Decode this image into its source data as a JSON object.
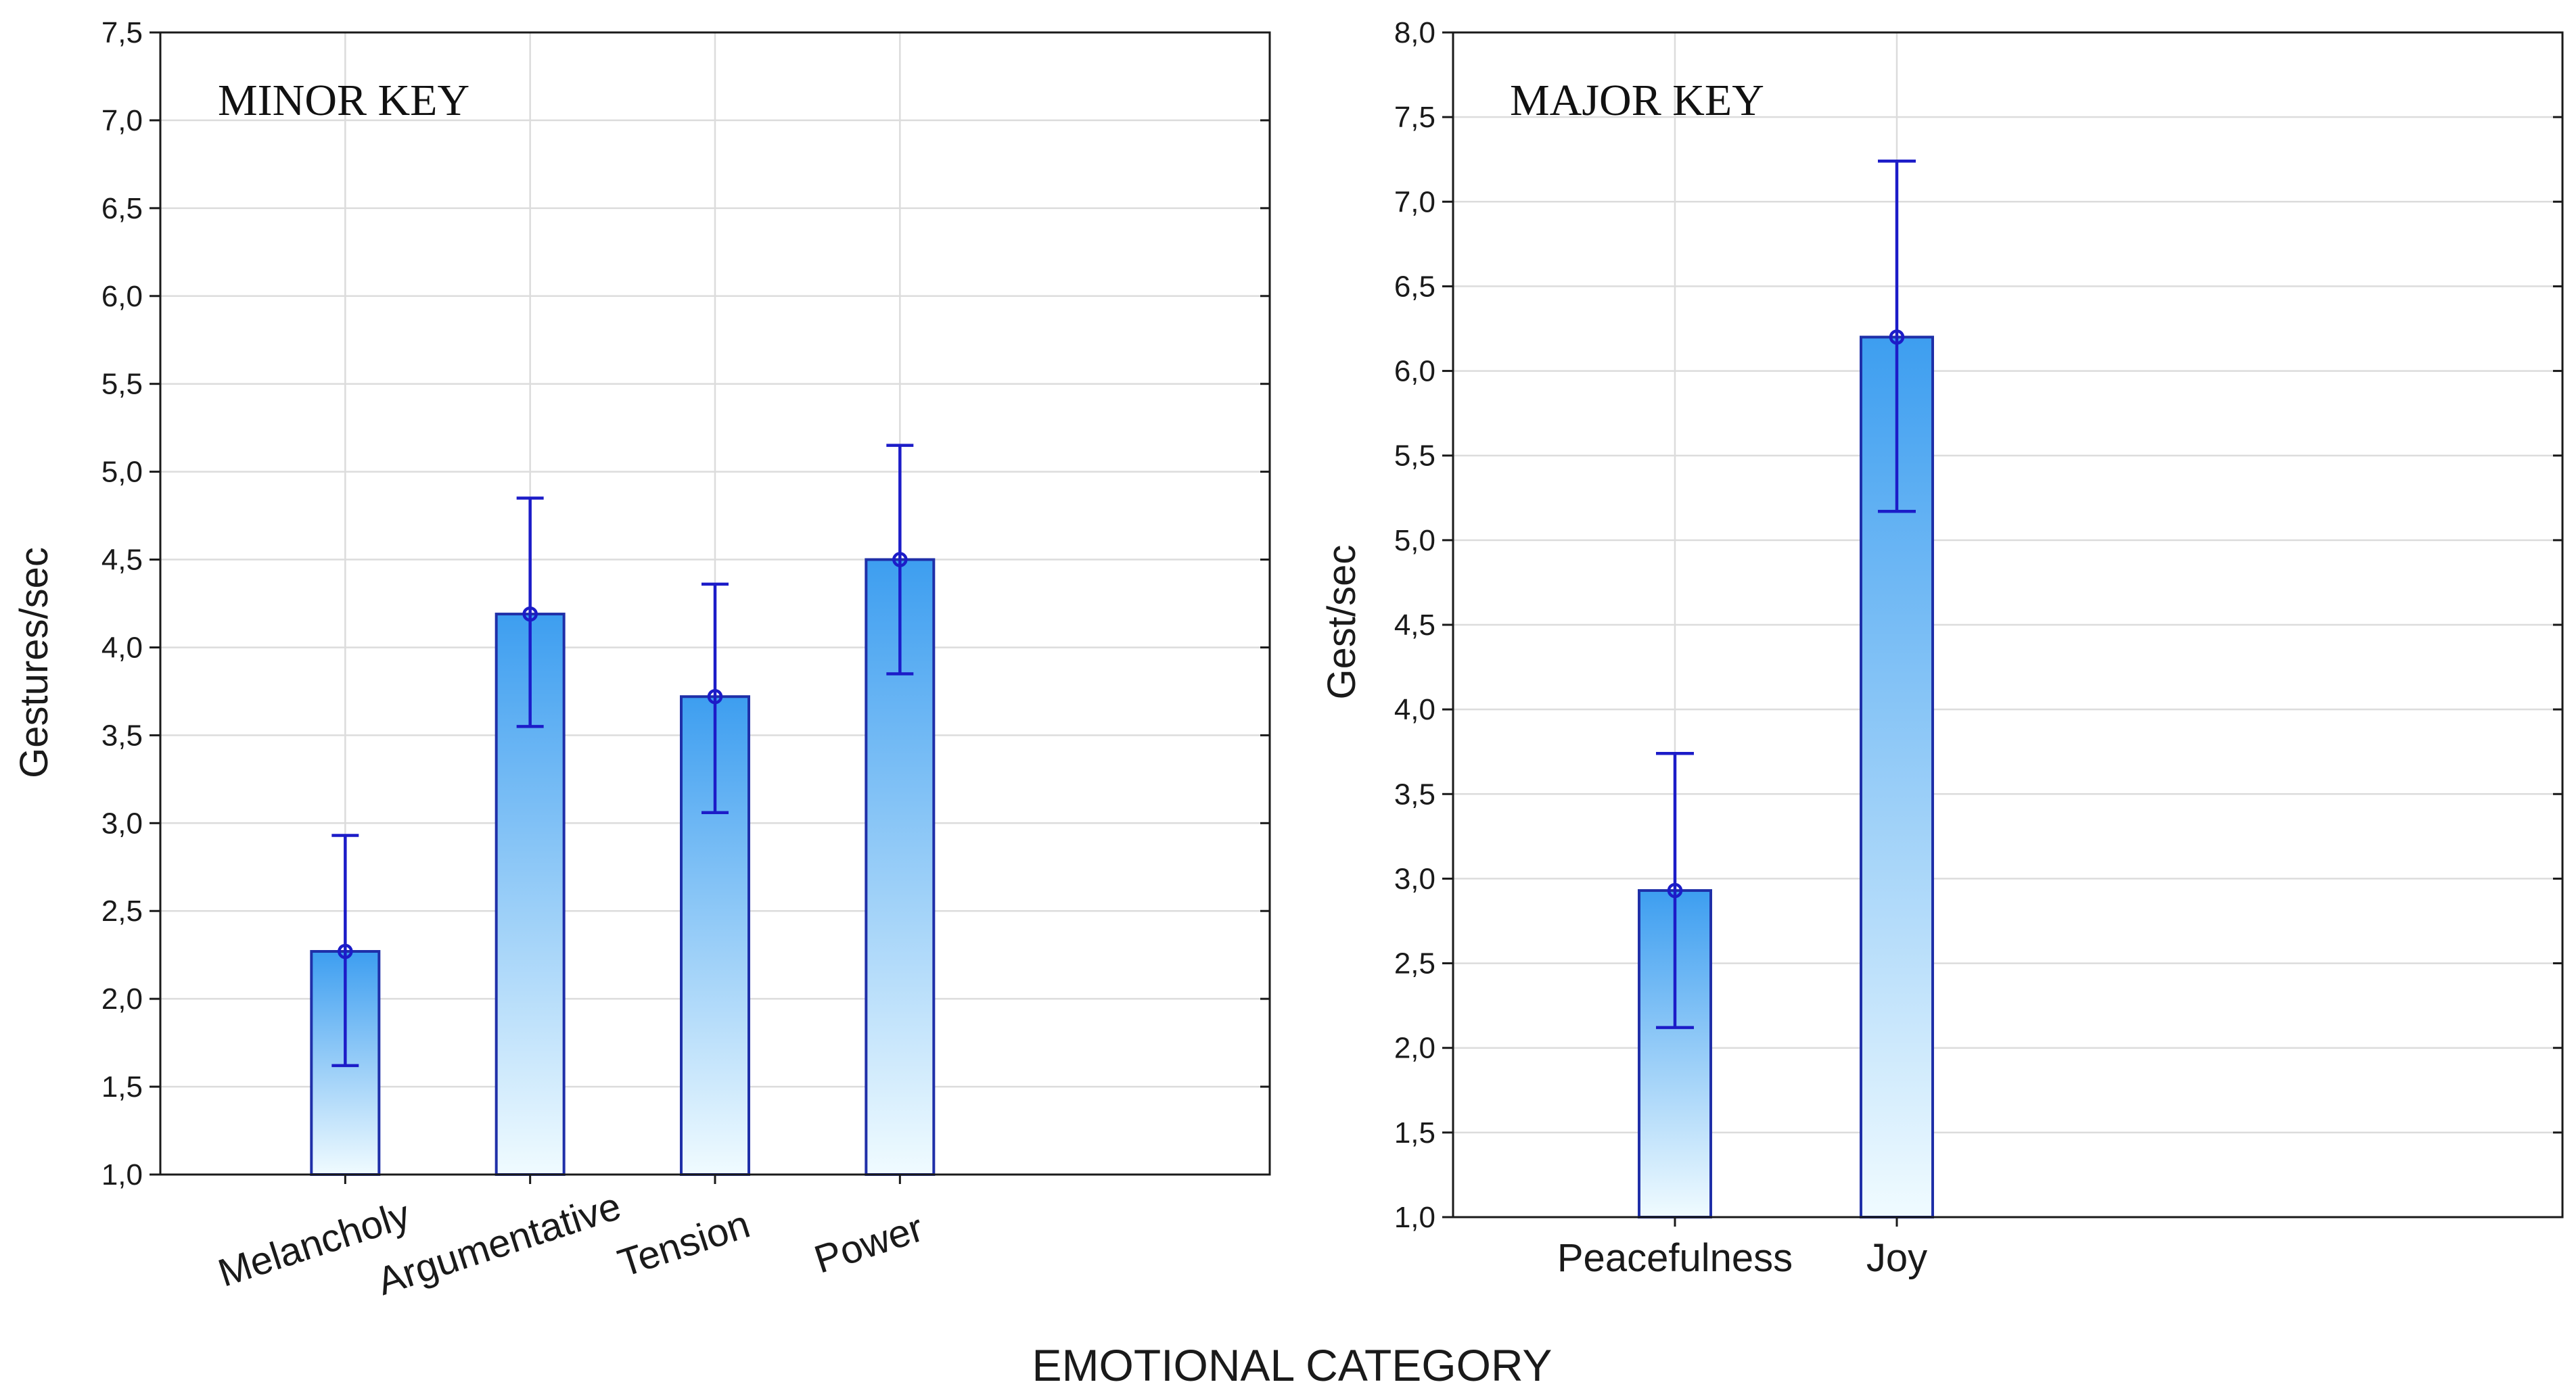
{
  "figure_xlabel": "EMOTIONAL CATEGORY",
  "colors": {
    "bar_top": "#3d9ef0",
    "bar_bottom": "#f0fbff",
    "bar_edge": "#1f2fa8",
    "error_bar": "#1c1cc8",
    "grid": "#dcdcdc"
  },
  "chart_data": [
    {
      "type": "bar",
      "title": "MINOR KEY",
      "xlabel": "",
      "ylabel": "Gestures/sec",
      "categories": [
        "Melancholy",
        "Argumentative",
        "Tension",
        "Power"
      ],
      "values": [
        2.27,
        4.19,
        3.72,
        4.5
      ],
      "error_low": [
        1.62,
        3.55,
        3.06,
        3.85
      ],
      "error_high": [
        2.93,
        4.85,
        4.36,
        5.15
      ],
      "ylim": [
        1.0,
        7.5
      ],
      "yticks": [
        "1,0",
        "1,5",
        "2,0",
        "2,5",
        "3,0",
        "3,5",
        "4,0",
        "4,5",
        "5,0",
        "5,5",
        "6,0",
        "6,5",
        "7,0",
        "7,5"
      ],
      "grid": true
    },
    {
      "type": "bar",
      "title": "MAJOR KEY",
      "xlabel": "",
      "ylabel": "Gest/sec",
      "categories": [
        "Peacefulness",
        "Joy"
      ],
      "values": [
        2.93,
        6.2
      ],
      "error_low": [
        2.12,
        5.17
      ],
      "error_high": [
        3.74,
        7.24
      ],
      "ylim": [
        1.0,
        8.0
      ],
      "yticks": [
        "1,0",
        "1,5",
        "2,0",
        "2,5",
        "3,0",
        "3,5",
        "4,0",
        "4,5",
        "5,0",
        "5,5",
        "6,0",
        "6,5",
        "7,0",
        "7,5",
        "8,0"
      ],
      "grid": true
    }
  ]
}
